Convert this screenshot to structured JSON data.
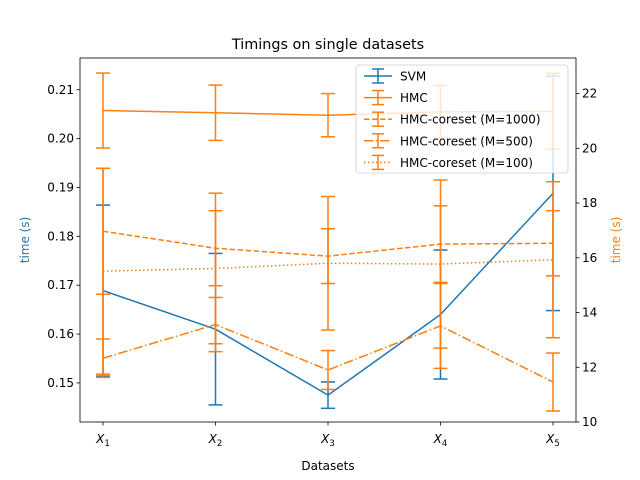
{
  "chart_data": {
    "type": "line",
    "title": "Timings on single datasets",
    "xlabel": "Datasets",
    "categories": [
      "X1",
      "X2",
      "X3",
      "X4",
      "X5"
    ],
    "category_labels": [
      {
        "base": "X",
        "sub": "1"
      },
      {
        "base": "X",
        "sub": "2"
      },
      {
        "base": "X",
        "sub": "3"
      },
      {
        "base": "X",
        "sub": "4"
      },
      {
        "base": "X",
        "sub": "5"
      }
    ],
    "left_axis": {
      "label": "time (s)",
      "color": "#1f77b4",
      "ylim": [
        0.142,
        0.2165
      ],
      "ticks": [
        0.15,
        0.16,
        0.17,
        0.18,
        0.19,
        0.2,
        0.21
      ],
      "tick_labels": [
        "0.15",
        "0.16",
        "0.17",
        "0.18",
        "0.19",
        "0.20",
        "0.21"
      ]
    },
    "right_axis": {
      "label": "time (s)",
      "color": "#ff7f0e",
      "ylim": [
        10.0,
        23.3
      ],
      "ticks": [
        10,
        12,
        14,
        16,
        18,
        20,
        22
      ],
      "tick_labels": [
        "10",
        "12",
        "14",
        "16",
        "18",
        "20",
        "22"
      ]
    },
    "series": [
      {
        "name": "SVM",
        "axis": "left",
        "color": "#1f77b4",
        "style": "solid",
        "values": [
          0.1689,
          0.161,
          0.1475,
          0.164,
          0.1888
        ],
        "errors": [
          0.0175,
          0.0155,
          0.0027,
          0.0132,
          0.024
        ]
      },
      {
        "name": "HMC",
        "axis": "right",
        "color": "#ff7f0e",
        "style": "solid",
        "values": [
          21.38,
          21.3,
          21.21,
          21.33,
          21.35
        ],
        "errors": [
          1.37,
          1.01,
          0.79,
          0.96,
          1.39
        ]
      },
      {
        "name": "HMC-coreset (M=1000)",
        "axis": "right",
        "color": "#ff7f0e",
        "style": "dashed",
        "values": [
          16.97,
          16.35,
          16.06,
          16.5,
          16.53
        ],
        "errors": [
          2.3,
          1.37,
          1.0,
          1.4,
          1.19
        ]
      },
      {
        "name": "HMC-coreset (M=500)",
        "axis": "right",
        "color": "#ff7f0e",
        "style": "dashdot",
        "values": [
          12.33,
          13.56,
          11.9,
          13.51,
          11.46
        ],
        "errors": [
          0.7,
          0.99,
          0.71,
          1.55,
          1.06
        ]
      },
      {
        "name": "HMC-coreset (M=100)",
        "axis": "right",
        "color": "#ff7f0e",
        "style": "dotted",
        "values": [
          15.51,
          15.61,
          15.8,
          15.77,
          15.93
        ],
        "errors": [
          3.76,
          2.75,
          2.44,
          3.07,
          2.85
        ]
      }
    ],
    "legend_position": "top-right",
    "grid": false
  }
}
